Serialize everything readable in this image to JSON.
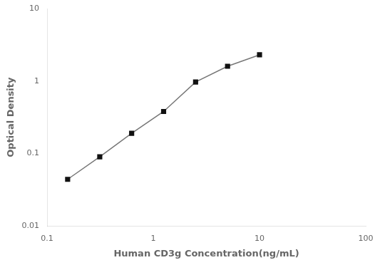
{
  "chart_data": {
    "type": "line",
    "x": [
      0.156,
      0.313,
      0.625,
      1.25,
      2.5,
      5.0,
      10.0
    ],
    "values": [
      0.044,
      0.09,
      0.19,
      0.38,
      0.97,
      1.6,
      2.3
    ],
    "xlabel": "Human CD3g Concentration(ng/mL)",
    "ylabel": "Optical Density",
    "xlim": [
      0.1,
      100
    ],
    "ylim": [
      0.01,
      10
    ],
    "xticks": [
      0.1,
      1,
      10,
      100
    ],
    "yticks": [
      0.01,
      0.1,
      1,
      10
    ],
    "log": true,
    "grid": false,
    "color": "#777777",
    "colors": [
      "#111111",
      "#111111",
      "#111111",
      "#111111",
      "#111111",
      "#111111",
      "#111111"
    ],
    "marker": "square",
    "line_style": "solid"
  }
}
